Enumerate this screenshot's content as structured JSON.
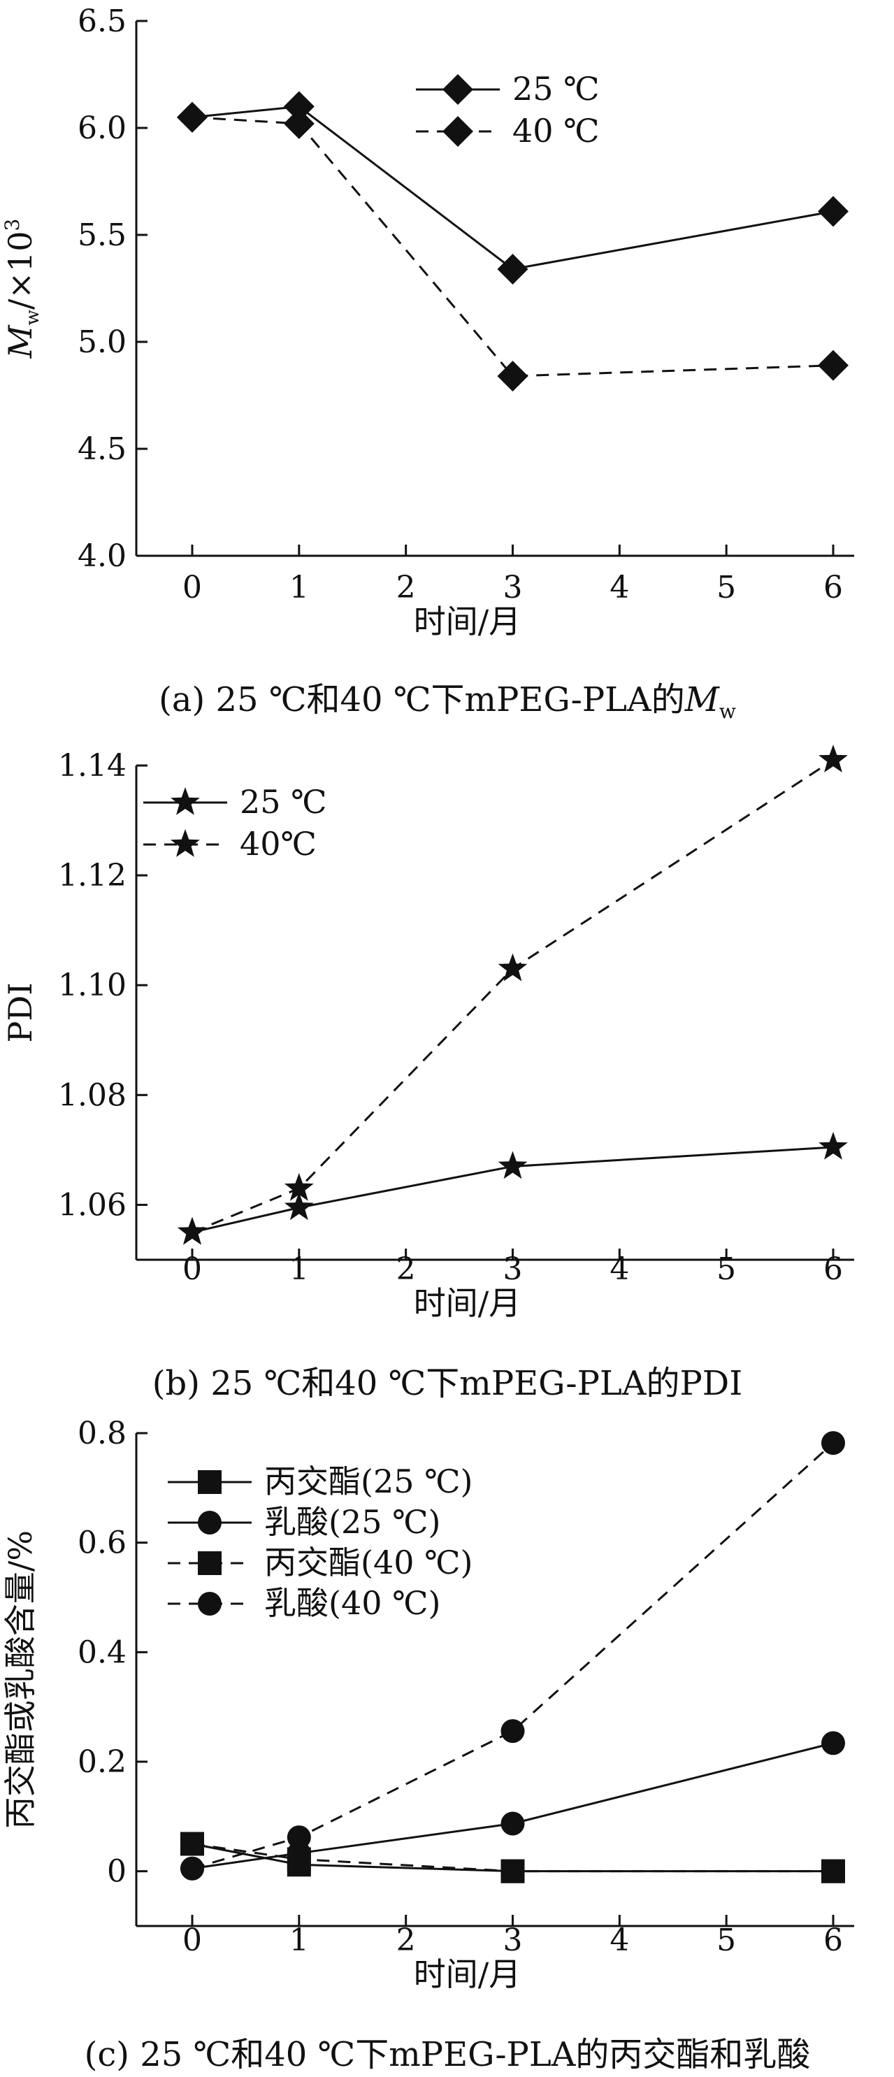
{
  "chart_data": [
    {
      "type": "line",
      "caption": "(a) 25 ℃和40 ℃下mPEG-PLA的M",
      "caption_sub": "w",
      "xlabel": "时间/月",
      "ylabel_main": "M",
      "ylabel_sub": "w",
      "ylabel_tail": "/×10",
      "ylabel_sup": "3",
      "x": [
        0,
        1,
        3,
        6
      ],
      "xticks": [
        "0",
        "1",
        "2",
        "3",
        "4",
        "5",
        "6"
      ],
      "yticks": [
        "4.0",
        "4.5",
        "5.0",
        "5.5",
        "6.0",
        "6.5"
      ],
      "xlim": [
        0,
        6
      ],
      "ylim": [
        4.0,
        6.5
      ],
      "legend_position": "top-right",
      "series": [
        {
          "name": "25 ℃",
          "marker": "diamond",
          "line": "solid",
          "values": [
            6.05,
            6.1,
            5.34,
            5.61
          ]
        },
        {
          "name": "40 ℃",
          "marker": "diamond",
          "line": "dashed",
          "values": [
            6.05,
            6.02,
            4.84,
            4.89
          ]
        }
      ]
    },
    {
      "type": "line",
      "caption": "(b) 25 ℃和40 ℃下mPEG-PLA的PDI",
      "xlabel": "时间/月",
      "ylabel": "PDI",
      "x": [
        0,
        1,
        3,
        6
      ],
      "xticks": [
        "0",
        "1",
        "2",
        "3",
        "4",
        "5",
        "6"
      ],
      "yticks": [
        "1.06",
        "1.08",
        "1.10",
        "1.12",
        "1.14"
      ],
      "xlim": [
        0,
        6
      ],
      "ylim": [
        1.05,
        1.14
      ],
      "legend_position": "top-left",
      "series": [
        {
          "name": "25 ℃",
          "marker": "star",
          "line": "solid",
          "values": [
            1.055,
            1.0595,
            1.067,
            1.0705
          ]
        },
        {
          "name": "40℃",
          "marker": "star",
          "line": "dashed",
          "values": [
            1.055,
            1.063,
            1.103,
            1.141
          ]
        }
      ]
    },
    {
      "type": "line",
      "caption": "(c) 25 ℃和40 ℃下mPEG-PLA的丙交酯和乳酸",
      "xlabel": "时间/月",
      "ylabel": "丙交酯或乳酸含量/%",
      "x": [
        0,
        1,
        3,
        6
      ],
      "xticks": [
        "0",
        "1",
        "2",
        "3",
        "4",
        "5",
        "6"
      ],
      "yticks": [
        "0",
        "0.2",
        "0.4",
        "0.6",
        "0.8"
      ],
      "xlim": [
        0,
        6
      ],
      "ylim": [
        -0.1,
        0.8
      ],
      "legend_position": "top-left",
      "series": [
        {
          "name": "丙交酯(25 ℃)",
          "marker": "square",
          "line": "solid",
          "values": [
            0.05,
            0.012,
            0.0,
            0.0
          ]
        },
        {
          "name": "乳酸(25 ℃)",
          "marker": "circle",
          "line": "solid",
          "values": [
            0.005,
            0.033,
            0.087,
            0.234
          ]
        },
        {
          "name": "丙交酯(40 ℃)",
          "marker": "square",
          "line": "dashed",
          "values": [
            0.05,
            0.022,
            0.0,
            0.0
          ]
        },
        {
          "name": "乳酸(40 ℃)",
          "marker": "circle",
          "line": "dashed",
          "values": [
            0.005,
            0.062,
            0.256,
            0.782
          ]
        }
      ]
    }
  ]
}
